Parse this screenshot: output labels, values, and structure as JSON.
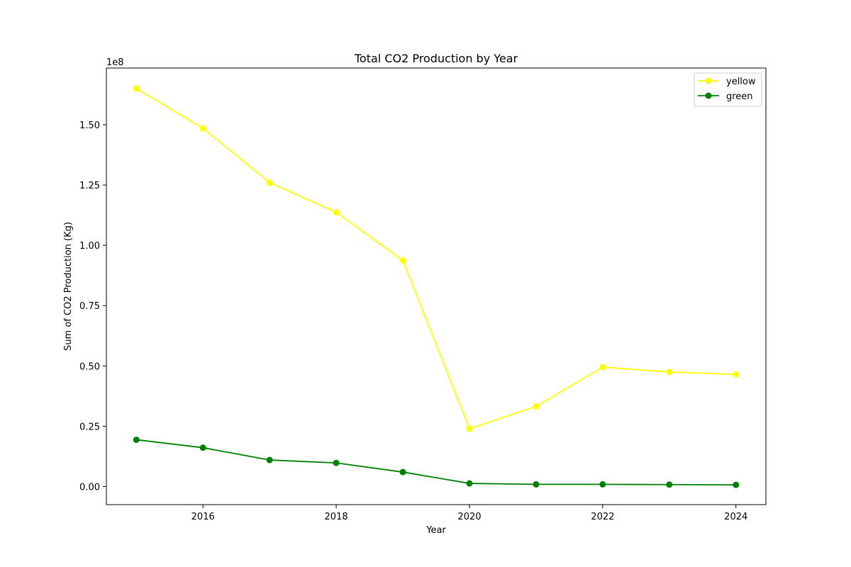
{
  "chart_data": {
    "type": "line",
    "title": "Total CO2 Production by Year",
    "xlabel": "Year",
    "ylabel": "Sum of CO2 Production (Kg)",
    "y_offset_label": "1e8",
    "y_scale": 100000000,
    "x": [
      2015,
      2016,
      2017,
      2018,
      2019,
      2020,
      2021,
      2022,
      2023,
      2024
    ],
    "xlim": [
      2014.55,
      2024.45
    ],
    "ylim": [
      -7500000,
      173500000
    ],
    "x_ticks": [
      2016,
      2018,
      2020,
      2022,
      2024
    ],
    "x_tick_labels": [
      "2016",
      "2018",
      "2020",
      "2022",
      "2024"
    ],
    "y_ticks": [
      0,
      25000000,
      50000000,
      75000000,
      100000000,
      125000000,
      150000000
    ],
    "y_tick_labels": [
      "0.00",
      "0.25",
      "0.50",
      "0.75",
      "1.00",
      "1.25",
      "1.50"
    ],
    "grid": false,
    "legend_position": "top-right",
    "series": [
      {
        "name": "yellow",
        "color": "#ffff00",
        "values": [
          165000000,
          148500000,
          126000000,
          113700000,
          93700000,
          24000000,
          33200000,
          49500000,
          47500000,
          46500000
        ]
      },
      {
        "name": "green",
        "color": "#008000",
        "values": [
          19400000,
          16100000,
          11000000,
          9800000,
          6000000,
          1300000,
          900000,
          900000,
          800000,
          700000
        ]
      }
    ]
  }
}
